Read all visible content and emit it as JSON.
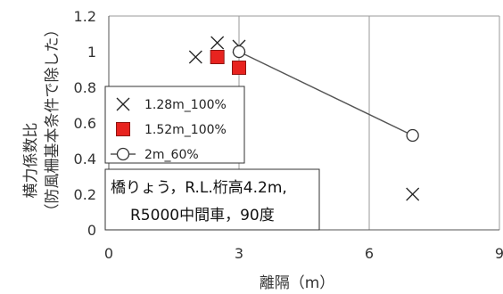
{
  "chart_data": {
    "type": "scatter",
    "xlabel": "離隔（m）",
    "ylabel_line1": "横力係数比",
    "ylabel_line2": "（防風柵基本条件で除した）",
    "xlim": [
      0,
      9
    ],
    "ylim": [
      0,
      1.2
    ],
    "x_ticks": [
      "0",
      "3",
      "6",
      "9"
    ],
    "y_ticks": [
      "0",
      "0.2",
      "0.4",
      "0.6",
      "0.8",
      "1",
      "1.2"
    ],
    "grid": "vertical",
    "legend_position": "left-middle",
    "series": [
      {
        "name": "1.28m_100%",
        "marker": "x",
        "color": "#222222",
        "line": false,
        "points": [
          [
            2.0,
            0.97
          ],
          [
            2.5,
            1.05
          ],
          [
            3.0,
            1.03
          ],
          [
            7.0,
            0.2
          ]
        ]
      },
      {
        "name": "1.52m_100%",
        "marker": "square",
        "color": "#e8231f",
        "line": false,
        "points": [
          [
            2.5,
            0.97
          ],
          [
            3.0,
            0.91
          ]
        ]
      },
      {
        "name": "2m_60%",
        "marker": "circle-open",
        "color": "#333333",
        "line": true,
        "points": [
          [
            3.0,
            1.0
          ],
          [
            7.0,
            0.53
          ]
        ]
      }
    ],
    "annotation": {
      "line1": "橋りょう，R.L.桁高4.2m,",
      "line2": "R5000中間車，90度"
    }
  }
}
